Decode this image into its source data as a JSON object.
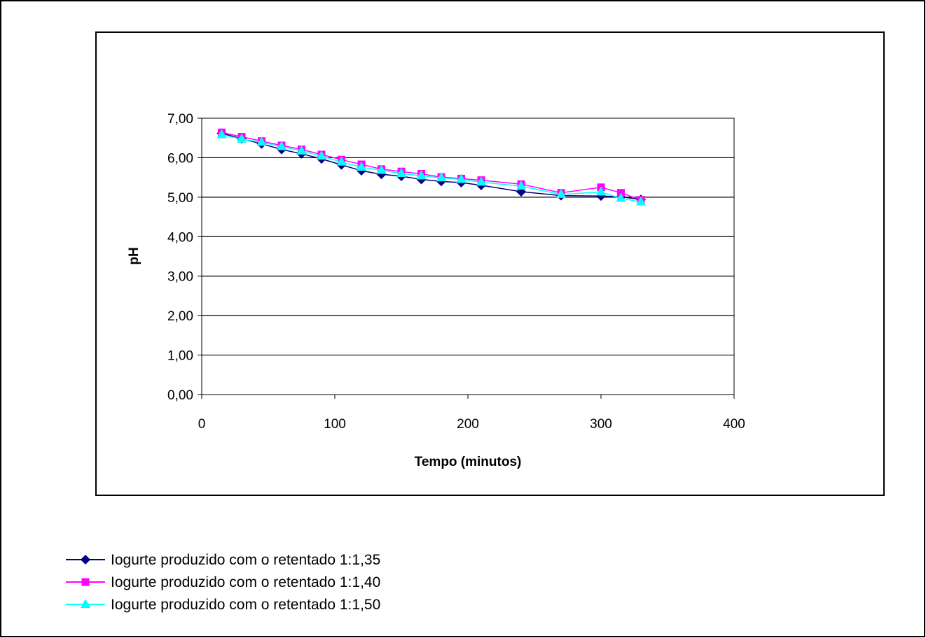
{
  "chart_data": {
    "type": "line",
    "title": "",
    "xlabel": "Tempo (minutos)",
    "ylabel": "pH",
    "xlim": [
      0,
      400
    ],
    "ylim": [
      0,
      7
    ],
    "x_ticks": [
      0,
      100,
      200,
      300,
      400
    ],
    "x_tick_labels": [
      "0",
      "100",
      "200",
      "300",
      "400"
    ],
    "y_ticks": [
      0,
      1,
      2,
      3,
      4,
      5,
      6,
      7
    ],
    "y_tick_labels": [
      "0,00",
      "1,00",
      "2,00",
      "3,00",
      "4,00",
      "5,00",
      "6,00",
      "7,00"
    ],
    "grid": "horizontal",
    "legend_position": "bottom-left",
    "series": [
      {
        "name": "Iogurte produzido com o retentado 1:1,35",
        "color": "#000080",
        "marker": "diamond",
        "points": [
          [
            15,
            6.62
          ],
          [
            30,
            6.48
          ],
          [
            45,
            6.35
          ],
          [
            60,
            6.21
          ],
          [
            75,
            6.1
          ],
          [
            90,
            5.97
          ],
          [
            105,
            5.82
          ],
          [
            120,
            5.67
          ],
          [
            135,
            5.58
          ],
          [
            150,
            5.53
          ],
          [
            165,
            5.45
          ],
          [
            180,
            5.4
          ],
          [
            195,
            5.37
          ],
          [
            210,
            5.3
          ],
          [
            240,
            5.14
          ],
          [
            270,
            5.04
          ],
          [
            300,
            5.03
          ],
          [
            315,
            5.01
          ],
          [
            330,
            4.94
          ]
        ]
      },
      {
        "name": "Iogurte produzido com o retentado 1:1,40",
        "color": "#FF00FF",
        "marker": "square",
        "points": [
          [
            15,
            6.64
          ],
          [
            30,
            6.53
          ],
          [
            45,
            6.42
          ],
          [
            60,
            6.31
          ],
          [
            75,
            6.21
          ],
          [
            90,
            6.08
          ],
          [
            105,
            5.95
          ],
          [
            120,
            5.83
          ],
          [
            135,
            5.71
          ],
          [
            150,
            5.65
          ],
          [
            165,
            5.59
          ],
          [
            180,
            5.51
          ],
          [
            195,
            5.47
          ],
          [
            210,
            5.43
          ],
          [
            240,
            5.33
          ],
          [
            270,
            5.11
          ],
          [
            300,
            5.25
          ],
          [
            315,
            5.11
          ],
          [
            330,
            4.93
          ]
        ]
      },
      {
        "name": "Iogurte produzido com o retentado 1:1,50",
        "color": "#00FFFF",
        "marker": "triangle",
        "points": [
          [
            15,
            6.58
          ],
          [
            30,
            6.47
          ],
          [
            45,
            6.39
          ],
          [
            60,
            6.28
          ],
          [
            75,
            6.17
          ],
          [
            90,
            6.04
          ],
          [
            105,
            5.89
          ],
          [
            120,
            5.76
          ],
          [
            135,
            5.68
          ],
          [
            150,
            5.6
          ],
          [
            165,
            5.54
          ],
          [
            180,
            5.49
          ],
          [
            195,
            5.45
          ],
          [
            210,
            5.38
          ],
          [
            240,
            5.28
          ],
          [
            270,
            5.07
          ],
          [
            300,
            5.13
          ],
          [
            315,
            4.97
          ],
          [
            330,
            4.88
          ]
        ]
      }
    ]
  }
}
